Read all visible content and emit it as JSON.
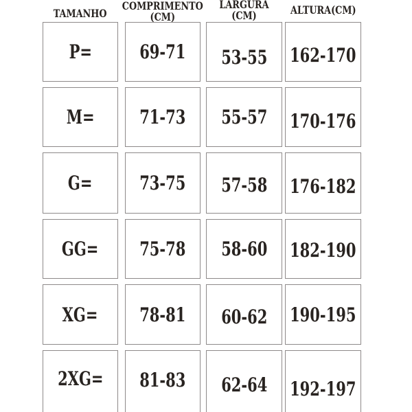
{
  "chart_data": {
    "type": "table",
    "title": "",
    "columns": [
      "TAMANHO",
      "COMPRIMENTO (CM)",
      "LARGURA (CM)",
      "ALTURA(CM)"
    ],
    "rows": [
      [
        "P=",
        "69-71",
        "53-55",
        "162-170"
      ],
      [
        "M=",
        "71-73",
        "55-57",
        "170-176"
      ],
      [
        "G=",
        "73-75",
        "57-58",
        "176-182"
      ],
      [
        "GG=",
        "75-78",
        "58-60",
        "182-190"
      ],
      [
        "XG=",
        "78-81",
        "60-62",
        "190-195"
      ],
      [
        "2XG=",
        "81-83",
        "62-64",
        "192-197"
      ]
    ]
  },
  "table": {
    "display_headers": [
      "TAMANHO",
      "COMPRIMENTO\n(CM)",
      "LARGURA (CM)",
      "ALTURA(CM)"
    ]
  },
  "colors": {
    "text": "#282320",
    "cell_border": "#8d8989",
    "background": "#ffffff"
  }
}
